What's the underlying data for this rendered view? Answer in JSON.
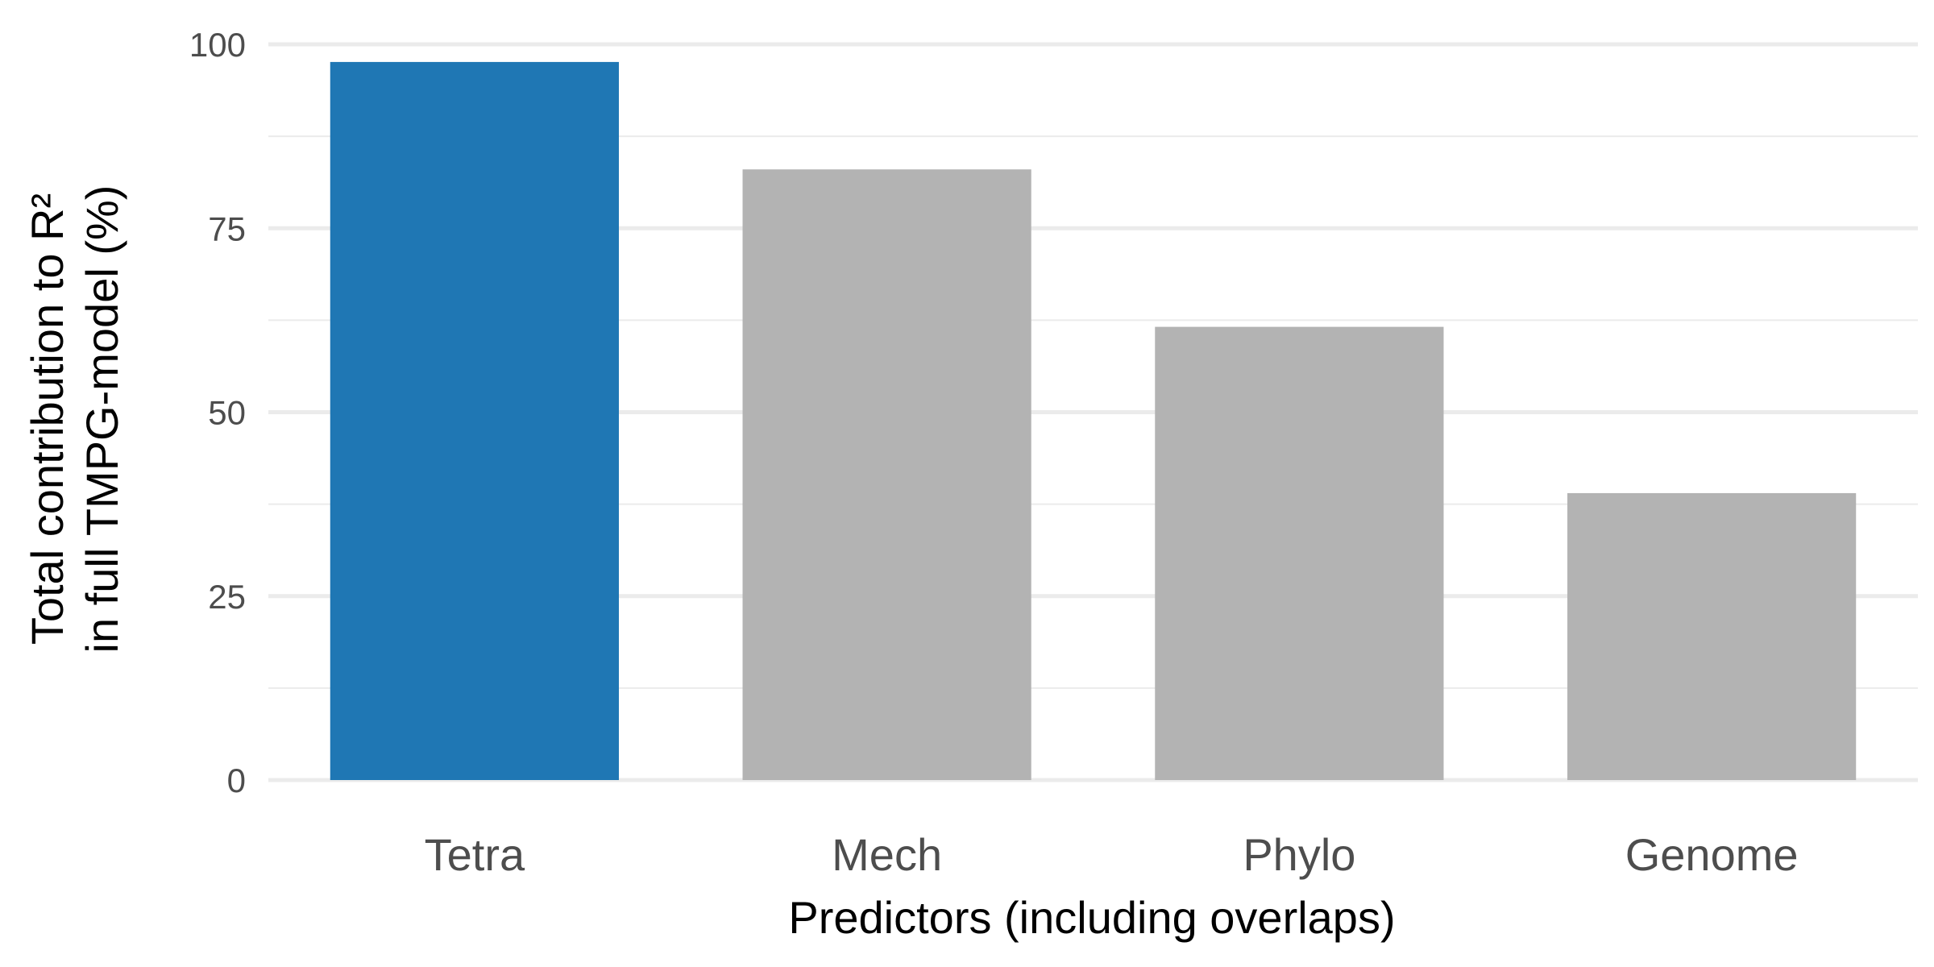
{
  "chart_data": {
    "type": "bar",
    "title": "",
    "xlabel": "Predictors (including overlaps)",
    "ylabel_lines": [
      "Total contribution to R²",
      "in full TMPG-model (%)"
    ],
    "categories": [
      "Tetra",
      "Mech",
      "Phylo",
      "Genome"
    ],
    "values": [
      97.6,
      83.0,
      61.6,
      39.0
    ],
    "ylim": [
      0,
      100
    ],
    "yticks": [
      0,
      25,
      50,
      75,
      100
    ],
    "grid": true,
    "legend": "none",
    "colors": {
      "highlight": "#1f77b4",
      "default": "#b3b3b3",
      "grid": "#ebebeb"
    },
    "highlight_index": 0
  }
}
